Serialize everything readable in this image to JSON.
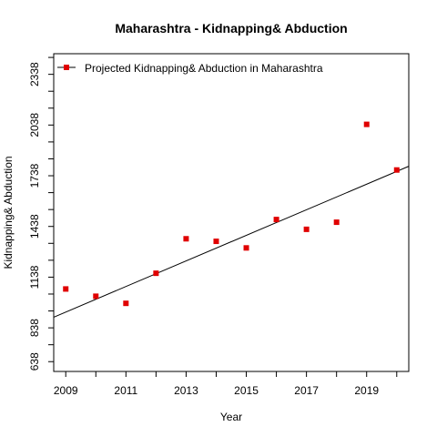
{
  "chart_data": {
    "type": "scatter",
    "title": "Maharashtra  -  Kidnapping& Abduction",
    "xlabel": "Year",
    "ylabel": "Kidnapping& Abduction",
    "xlim": [
      2008.6,
      2020.4
    ],
    "ylim": [
      580,
      2460
    ],
    "x_tick_labels": [
      "2009",
      "2011",
      "2013",
      "2015",
      "2017",
      "2019"
    ],
    "x_ticks": [
      2009,
      2010,
      2011,
      2012,
      2013,
      2014,
      2015,
      2016,
      2017,
      2018,
      2019,
      2020
    ],
    "y_tick_labels": [
      "638",
      "838",
      "1138",
      "1438",
      "1738",
      "2038",
      "2338"
    ],
    "y_ticks": [
      638,
      738,
      838,
      938,
      1038,
      1138,
      1238,
      1338,
      1438,
      1538,
      1638,
      1738,
      1838,
      1938,
      2038,
      2138,
      2238,
      2338,
      2438
    ],
    "grid": false,
    "legend_position": "top-left",
    "series": [
      {
        "name": "Projected  Kidnapping& Abduction  in  Maharashtra",
        "marker_color": "#e00000",
        "line_color": "#000000",
        "x": [
          2009,
          2010,
          2011,
          2012,
          2013,
          2014,
          2015,
          2016,
          2017,
          2018,
          2019,
          2020
        ],
        "values": [
          1068,
          1025,
          983,
          1161,
          1365,
          1350,
          1311,
          1479,
          1421,
          1463,
          2042,
          1772
        ],
        "trend_line": {
          "from": [
            2008.6,
            901
          ],
          "to": [
            2020.4,
            1794
          ]
        }
      }
    ]
  }
}
